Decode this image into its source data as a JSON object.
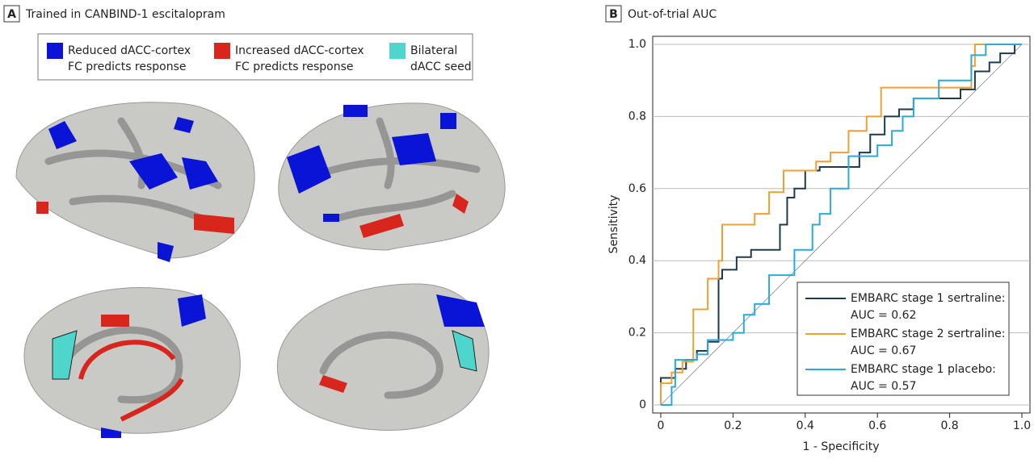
{
  "panel_a": {
    "label": "A",
    "title": "Trained in CANBIND-1 escitalopram",
    "legend": [
      {
        "line1": "Reduced dACC-cortex",
        "line2": "FC predicts response",
        "color": "#0a14d6"
      },
      {
        "line1": "Increased dACC-cortex",
        "line2": "FC predicts response",
        "color": "#d8261c"
      },
      {
        "line1": "Bilateral",
        "line2": "dACC seed",
        "color": "#4fd6cc"
      }
    ]
  },
  "chart_data": {
    "type": "line",
    "label": "B",
    "title": "Out-of-trial AUC",
    "x_label": "1 - Specificity",
    "y_label": "Sensitivity",
    "xlim": [
      0,
      1
    ],
    "ylim": [
      0,
      1
    ],
    "xticks": [
      0,
      0.2,
      0.4,
      0.6,
      0.8,
      {
        "value": 1,
        "label": "1.0"
      }
    ],
    "yticks": [
      0,
      0.2,
      0.4,
      0.6,
      0.8,
      {
        "value": 1,
        "label": "1.0"
      }
    ],
    "grid": true,
    "legend": "lower right",
    "series": [
      {
        "name": "EMBARC stage 1 sertraline:",
        "auc": "AUC = 0.62",
        "color": "#1e3b4c",
        "x": [
          0,
          0,
          0.04,
          0.04,
          0.07,
          0.07,
          0.1,
          0.1,
          0.13,
          0.13,
          0.16,
          0.16,
          0.17,
          0.17,
          0.21,
          0.21,
          0.25,
          0.25,
          0.33,
          0.33,
          0.35,
          0.35,
          0.37,
          0.37,
          0.4,
          0.4,
          0.44,
          0.44,
          0.55,
          0.55,
          0.58,
          0.58,
          0.62,
          0.62,
          0.66,
          0.66,
          0.7,
          0.7,
          0.83,
          0.83,
          0.87,
          0.87,
          0.91,
          0.91,
          0.94,
          0.94,
          0.98,
          0.98,
          1
        ],
        "values": [
          0,
          0.075,
          0.075,
          0.1,
          0.1,
          0.125,
          0.125,
          0.15,
          0.15,
          0.175,
          0.175,
          0.35,
          0.35,
          0.375,
          0.375,
          0.41,
          0.41,
          0.43,
          0.43,
          0.5,
          0.5,
          0.575,
          0.575,
          0.6,
          0.6,
          0.65,
          0.65,
          0.66,
          0.66,
          0.7,
          0.7,
          0.75,
          0.75,
          0.8,
          0.8,
          0.82,
          0.82,
          0.85,
          0.85,
          0.875,
          0.875,
          0.925,
          0.925,
          0.95,
          0.95,
          0.975,
          0.975,
          1,
          1
        ]
      },
      {
        "name": "EMBARC stage 2 sertraline:",
        "auc": "AUC = 0.67",
        "color": "#f0a030",
        "x": [
          0,
          0,
          0.03,
          0.03,
          0.06,
          0.06,
          0.09,
          0.09,
          0.13,
          0.13,
          0.16,
          0.16,
          0.17,
          0.17,
          0.26,
          0.26,
          0.3,
          0.3,
          0.34,
          0.34,
          0.43,
          0.43,
          0.47,
          0.47,
          0.52,
          0.52,
          0.57,
          0.57,
          0.61,
          0.61,
          0.86,
          0.86,
          0.87,
          0.87,
          1
        ],
        "values": [
          0,
          0.06,
          0.06,
          0.09,
          0.09,
          0.12,
          0.12,
          0.265,
          0.265,
          0.35,
          0.35,
          0.4,
          0.4,
          0.5,
          0.5,
          0.53,
          0.53,
          0.59,
          0.59,
          0.65,
          0.65,
          0.675,
          0.675,
          0.7,
          0.7,
          0.76,
          0.76,
          0.8,
          0.8,
          0.88,
          0.88,
          0.94,
          0.94,
          1,
          1
        ]
      },
      {
        "name": "EMBARC stage 1 placebo:",
        "auc": "AUC = 0.57",
        "color": "#2aa9dc",
        "x": [
          0,
          0.03,
          0.03,
          0.04,
          0.04,
          0.1,
          0.1,
          0.13,
          0.13,
          0.2,
          0.2,
          0.23,
          0.23,
          0.26,
          0.26,
          0.3,
          0.3,
          0.37,
          0.37,
          0.42,
          0.42,
          0.44,
          0.44,
          0.47,
          0.47,
          0.52,
          0.52,
          0.6,
          0.6,
          0.64,
          0.64,
          0.67,
          0.67,
          0.7,
          0.7,
          0.77,
          0.77,
          0.86,
          0.86,
          0.9,
          0.9,
          1
        ],
        "values": [
          0,
          0,
          0.05,
          0.05,
          0.125,
          0.125,
          0.14,
          0.14,
          0.18,
          0.18,
          0.2,
          0.2,
          0.25,
          0.25,
          0.28,
          0.28,
          0.36,
          0.36,
          0.43,
          0.43,
          0.5,
          0.5,
          0.53,
          0.53,
          0.6,
          0.6,
          0.69,
          0.69,
          0.72,
          0.72,
          0.76,
          0.76,
          0.8,
          0.8,
          0.85,
          0.85,
          0.9,
          0.9,
          0.97,
          0.97,
          1,
          1
        ]
      }
    ]
  }
}
